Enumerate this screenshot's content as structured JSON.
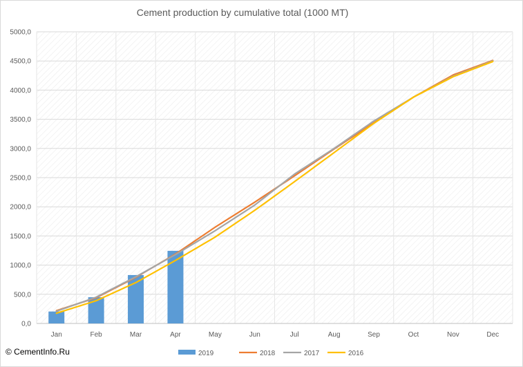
{
  "chart_data": {
    "type": "bar+line",
    "title": "Cement production by cumulative total (1000 MT)",
    "categories": [
      "Jan",
      "Feb",
      "Mar",
      "Apr",
      "May",
      "Jun",
      "Jul",
      "Aug",
      "Sep",
      "Oct",
      "Nov",
      "Dec"
    ],
    "y_ticks": [
      "0,0",
      "500,0",
      "1000,0",
      "1500,0",
      "2000,0",
      "2500,0",
      "3000,0",
      "3500,0",
      "4000,0",
      "4500,0",
      "5000,0"
    ],
    "ylim": [
      0,
      5000
    ],
    "grid": true,
    "legend_position": "bottom",
    "series": [
      {
        "name": "2019",
        "kind": "bar",
        "color": "#5b9bd5",
        "values": [
          205,
          450,
          830,
          1245,
          null,
          null,
          null,
          null,
          null,
          null,
          null,
          null
        ]
      },
      {
        "name": "2018",
        "kind": "line",
        "color": "#ed7d31",
        "values": [
          220,
          440,
          790,
          1190,
          1650,
          2080,
          2530,
          2990,
          3440,
          3880,
          4260,
          4510
        ]
      },
      {
        "name": "2017",
        "kind": "line",
        "color": "#a5a5a5",
        "values": [
          210,
          450,
          800,
          1180,
          1590,
          2030,
          2560,
          3000,
          3470,
          3880,
          4240,
          4500
        ]
      },
      {
        "name": "2016",
        "kind": "line",
        "color": "#ffc000",
        "values": [
          175,
          390,
          700,
          1080,
          1480,
          1940,
          2430,
          2930,
          3430,
          3880,
          4230,
          4490
        ]
      }
    ]
  },
  "watermark": "© CementInfo.Ru"
}
